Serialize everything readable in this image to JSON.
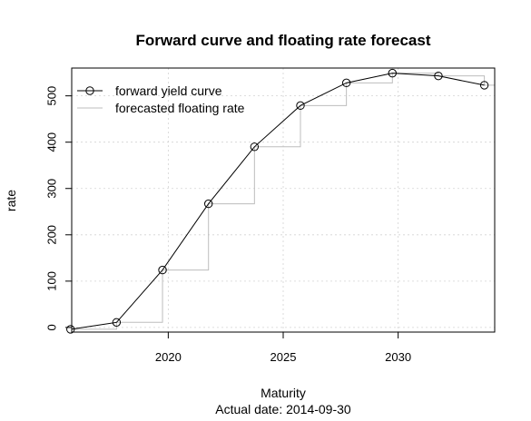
{
  "chart_data": {
    "type": "line",
    "title": "Forward curve and floating rate forecast",
    "xlabel": "Maturity",
    "ylabel": "rate",
    "subtitle": "Actual date:  2014-09-30",
    "xlim": [
      2015.8,
      2034.2
    ],
    "ylim": [
      -10,
      560
    ],
    "x_ticks": [
      2020,
      2025,
      2030
    ],
    "y_ticks": [
      0,
      100,
      200,
      300,
      400,
      500
    ],
    "grid": true,
    "legend_position": "top-left",
    "series": [
      {
        "name": "forward yield curve",
        "style": "line-with-open-circles",
        "color": "#000000",
        "x": [
          2015.75,
          2017.75,
          2019.75,
          2021.75,
          2023.75,
          2025.75,
          2027.75,
          2029.75,
          2031.75,
          2033.75
        ],
        "values": [
          -4,
          11,
          124,
          267,
          390,
          479,
          528,
          549,
          543,
          523
        ]
      },
      {
        "name": "forecasted floating rate",
        "style": "step",
        "color": "#bdbdbd",
        "x": [
          2015.75,
          2017.75,
          2019.75,
          2021.75,
          2023.75,
          2025.75,
          2027.75,
          2029.75,
          2031.75,
          2033.75,
          2034.2
        ],
        "values": [
          -4,
          11,
          124,
          267,
          390,
          479,
          528,
          549,
          543,
          523,
          523
        ]
      }
    ]
  }
}
